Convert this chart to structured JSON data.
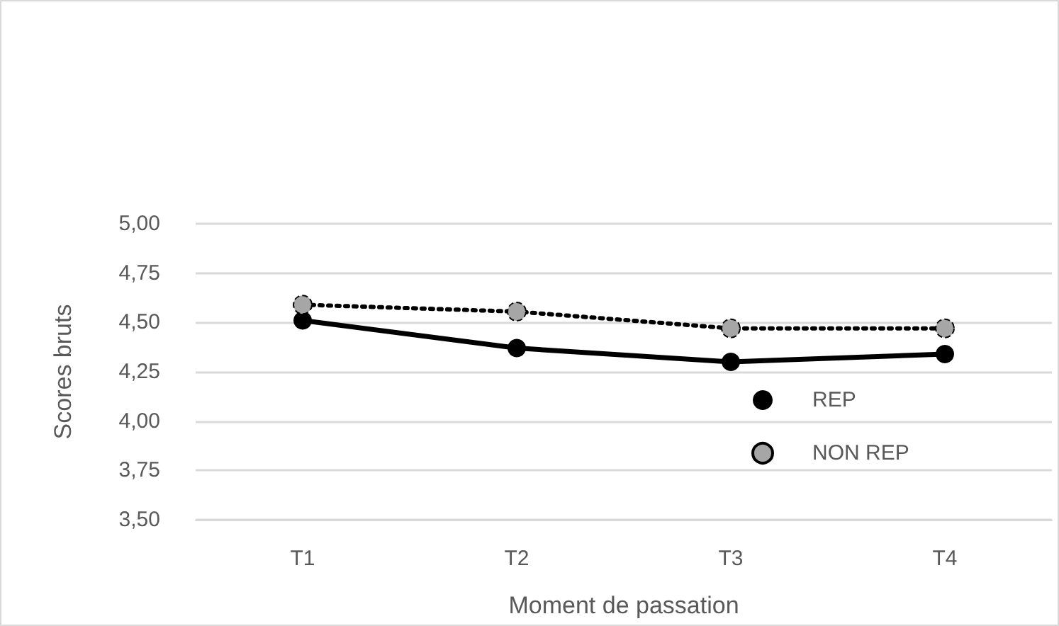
{
  "chart_data": {
    "type": "line",
    "xlabel": "Moment de passation",
    "ylabel": "Scores bruts",
    "categories": [
      "T1",
      "T2",
      "T3",
      "T4"
    ],
    "series": [
      {
        "name": "REP",
        "color": "#000000",
        "values": [
          4.51,
          4.37,
          4.3,
          4.34
        ],
        "line_style": "solid"
      },
      {
        "name": "NON REP",
        "color": "#a6a6a6",
        "values": [
          4.59,
          4.555,
          4.47,
          4.47
        ],
        "line_style": "dotted"
      }
    ],
    "ylim": [
      3.5,
      5
    ],
    "yticks": [
      {
        "value": 3.5,
        "label": "3,50"
      },
      {
        "value": 3.75,
        "label": "3,75"
      },
      {
        "value": 4,
        "label": "4,00"
      },
      {
        "value": 4.25,
        "label": "4,25"
      },
      {
        "value": 4.5,
        "label": "4,50"
      },
      {
        "value": 4.75,
        "label": "4,75"
      },
      {
        "value": 5,
        "label": "5,00"
      }
    ],
    "grid": "y",
    "legend": "bottom right",
    "marker": "circle"
  }
}
